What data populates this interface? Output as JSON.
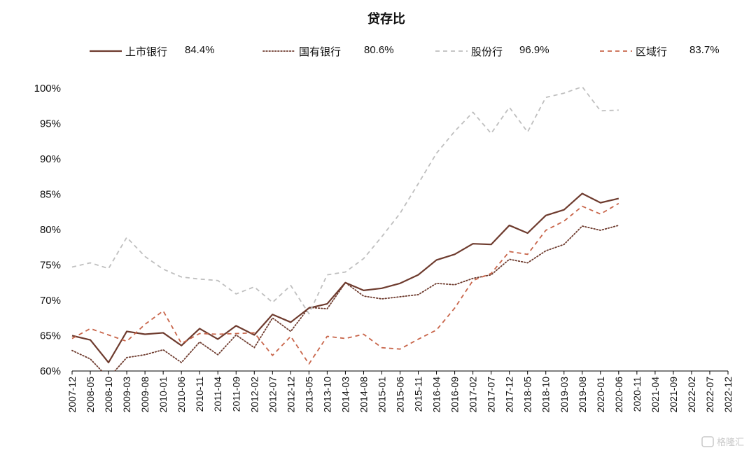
{
  "chart_data": {
    "type": "line",
    "title": "贷存比",
    "xlabel": "",
    "ylabel": "",
    "ylim": [
      60,
      100
    ],
    "yticks": [
      "60%",
      "65%",
      "70%",
      "75%",
      "80%",
      "85%",
      "90%",
      "95%",
      "100%"
    ],
    "grid": false,
    "legend_position": "top",
    "categories": [
      "2007-12",
      "2008-05",
      "2008-10",
      "2009-03",
      "2009-08",
      "2010-01",
      "2010-06",
      "2010-11",
      "2011-04",
      "2011-09",
      "2012-02",
      "2012-07",
      "2012-12",
      "2013-05",
      "2013-10",
      "2014-03",
      "2014-08",
      "2015-01",
      "2015-06",
      "2015-11",
      "2016-04",
      "2016-09",
      "2017-02",
      "2017-07",
      "2017-12",
      "2018-05",
      "2018-10",
      "2019-03",
      "2019-08",
      "2020-01",
      "2020-06",
      "2020-11",
      "2021-04",
      "2021-09",
      "2022-02",
      "2022-07",
      "2022-12"
    ],
    "series": [
      {
        "name": "上市银行",
        "latest": "84.4%",
        "color": "#6e3b2e",
        "style": "solid",
        "values": [
          65.0,
          64.4,
          61.2,
          65.6,
          65.2,
          65.4,
          63.6,
          66.0,
          64.5,
          66.4,
          65.1,
          68.0,
          66.9,
          68.9,
          69.5,
          72.5,
          71.4,
          71.7,
          72.4,
          73.6,
          75.7,
          76.5,
          78.0,
          77.9,
          80.6,
          79.5,
          82.0,
          82.8,
          85.1,
          83.8,
          84.4,
          null,
          null,
          null,
          null,
          null,
          null
        ]
      },
      {
        "name": "国有银行",
        "latest": "80.6%",
        "color": "#6e3b2e",
        "style": "dotted",
        "values": [
          62.9,
          61.7,
          59.0,
          61.9,
          62.3,
          63.0,
          61.2,
          64.1,
          62.3,
          65.1,
          63.3,
          67.5,
          65.6,
          69.0,
          68.8,
          72.5,
          70.6,
          70.2,
          70.5,
          70.8,
          72.4,
          72.2,
          73.1,
          73.6,
          75.8,
          75.3,
          77.0,
          77.9,
          80.5,
          79.9,
          80.6,
          null,
          null,
          null,
          null,
          null,
          null
        ]
      },
      {
        "name": "股份行",
        "latest": "96.9%",
        "color": "#bfbfbf",
        "style": "dashed",
        "values": [
          74.7,
          75.3,
          74.5,
          78.9,
          76.2,
          74.4,
          73.3,
          73.0,
          72.8,
          70.9,
          71.9,
          69.7,
          72.1,
          68.1,
          73.6,
          74.0,
          75.9,
          79.0,
          82.3,
          86.5,
          90.8,
          93.9,
          96.6,
          93.6,
          97.3,
          93.8,
          98.7,
          99.3,
          100.2,
          96.8,
          96.9,
          null,
          null,
          null,
          null,
          null,
          null
        ]
      },
      {
        "name": "区域行",
        "latest": "83.7%",
        "color": "#c8654a",
        "style": "dashed",
        "values": [
          64.6,
          66.0,
          65.1,
          64.2,
          66.6,
          68.5,
          63.9,
          65.3,
          65.2,
          65.3,
          65.4,
          62.2,
          64.9,
          61.0,
          64.9,
          64.6,
          65.2,
          63.3,
          63.1,
          64.5,
          65.8,
          68.9,
          72.8,
          73.8,
          76.9,
          76.5,
          79.9,
          81.2,
          83.3,
          82.2,
          83.7,
          null,
          null,
          null,
          null,
          null,
          null
        ]
      }
    ]
  },
  "watermark": "格隆汇"
}
